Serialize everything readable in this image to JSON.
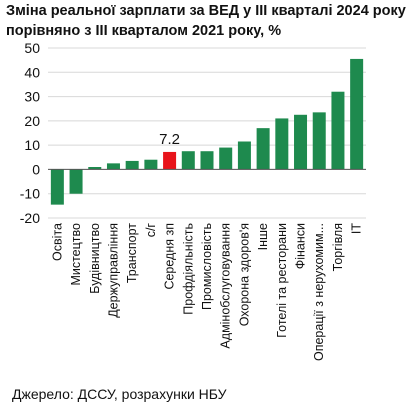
{
  "chart_data": {
    "type": "bar",
    "title": "Зміна реальної зарплати за ВЕД у ІІІ кварталі 2024 року порівняно з ІІІ кварталом 2021 року, %",
    "source": "Джерело: ДССУ, розрахунки НБУ",
    "categories": [
      "Освіта",
      "Мистецтво",
      "Будівництво",
      "Держуправління",
      "Транспорт",
      "с/г",
      "Середня зп",
      "Профдіяльність",
      "Промисловість",
      "Адмінобслуговування",
      "Охорона здоров'я",
      "Інше",
      "Готелі та ресторани",
      "Фінанси",
      "Операції з нерухомим...",
      "Торгівля",
      "ІТ"
    ],
    "values": [
      -14.5,
      -10.0,
      1.0,
      2.5,
      3.5,
      4.0,
      7.2,
      7.5,
      7.5,
      9.0,
      11.5,
      17.0,
      21.0,
      22.5,
      23.5,
      32.0,
      45.5
    ],
    "highlight_index": 6,
    "highlight_label": "7.2",
    "ylim": [
      -20,
      50
    ],
    "yticks": [
      -20,
      -10,
      0,
      10,
      20,
      30,
      40,
      50
    ],
    "colors": {
      "bar": "#1e8a4e",
      "highlight": "#e8141b",
      "grid": "#d8d8d8"
    },
    "grid": true,
    "xlabel": "",
    "ylabel": ""
  }
}
